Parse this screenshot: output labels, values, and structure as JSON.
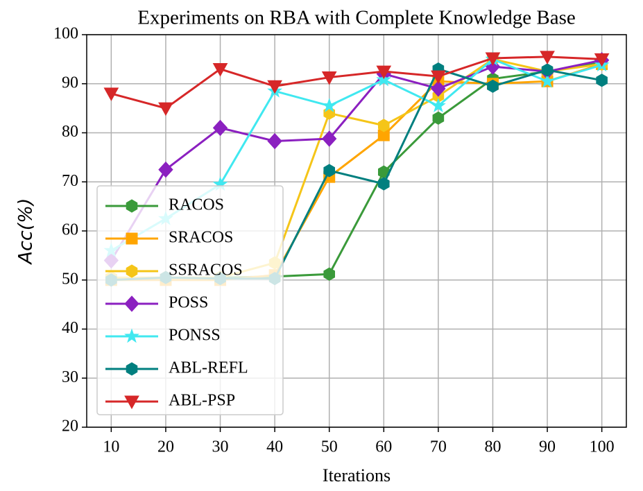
{
  "chart_data": {
    "type": "line",
    "title": "Experiments on RBA with Complete Knowledge Base",
    "xlabel": "Iterations",
    "ylabel": "Acc(%)",
    "x": [
      10,
      20,
      30,
      40,
      50,
      60,
      70,
      80,
      90,
      100
    ],
    "xlim": [
      5.5,
      104.5
    ],
    "xticks": [
      10,
      20,
      30,
      40,
      50,
      60,
      70,
      80,
      90,
      100
    ],
    "ylim": [
      20,
      100
    ],
    "yticks": [
      20,
      30,
      40,
      50,
      60,
      70,
      80,
      90,
      100
    ],
    "grid": true,
    "legend": "lower left",
    "series": [
      {
        "name": "RACOS",
        "color": "#3a9a3a",
        "marker": "hexagon",
        "values": [
          50.2,
          50.5,
          50.5,
          50.7,
          51.2,
          72,
          83,
          91,
          92.5,
          94.5
        ]
      },
      {
        "name": "SRACOS",
        "color": "#ffa500",
        "marker": "square",
        "values": [
          50,
          50,
          50,
          51,
          71,
          79.5,
          90.5,
          90,
          90.5,
          94
        ]
      },
      {
        "name": "SSRACOS",
        "color": "#f5c518",
        "marker": "hexagon",
        "values": [
          50.5,
          50.5,
          50.5,
          53.5,
          84,
          81.5,
          87.5,
          95,
          92.5,
          94
        ]
      },
      {
        "name": "POSS",
        "color": "#8b20c0",
        "marker": "diamond",
        "values": [
          54,
          72.5,
          81,
          78.3,
          78.8,
          92,
          89,
          93.5,
          92.5,
          94.8
        ]
      },
      {
        "name": "PONSS",
        "color": "#40e8f0",
        "marker": "star",
        "values": [
          56,
          62.5,
          69.5,
          88.5,
          85.5,
          90.8,
          85.5,
          95,
          90.5,
          93.8
        ]
      },
      {
        "name": "ABL-REFL",
        "color": "#007f7f",
        "marker": "hexagon",
        "values": [
          50,
          50.5,
          50.3,
          50.3,
          72.3,
          69.6,
          93,
          89.5,
          92.8,
          90.7
        ]
      },
      {
        "name": "ABL-PSP",
        "color": "#d62728",
        "marker": "triangle-down",
        "values": [
          88,
          85,
          93,
          89.5,
          91.3,
          92.5,
          91.5,
          95.2,
          95.5,
          95
        ]
      }
    ]
  }
}
